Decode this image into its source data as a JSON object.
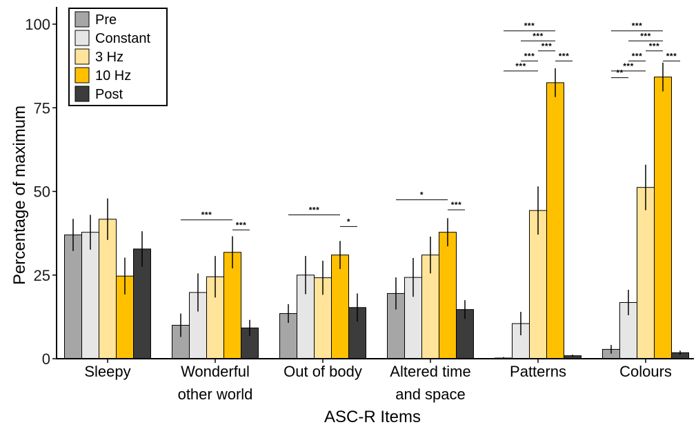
{
  "chart_data": {
    "type": "bar",
    "xlabel": "ASC-R Items",
    "ylabel": "Percentage of maximum",
    "ylim": [
      0,
      100
    ],
    "yticks": [
      0,
      25,
      50,
      75,
      100
    ],
    "grid": false,
    "legend_position": "top-left",
    "categories": [
      [
        "Sleepy"
      ],
      [
        "Wonderful",
        "other world"
      ],
      [
        "Out of body"
      ],
      [
        "Altered time",
        "and space"
      ],
      [
        "Patterns"
      ],
      [
        "Colours"
      ]
    ],
    "series": [
      {
        "name": "Pre",
        "color": "#a6a6a6",
        "values": [
          37,
          10,
          13.5,
          19.5,
          0.2,
          2.8
        ],
        "errors": [
          4.8,
          3.5,
          2.8,
          4.8,
          0.3,
          1.3
        ]
      },
      {
        "name": "Constant",
        "color": "#e6e6e6",
        "values": [
          37.8,
          19.8,
          25,
          24.3,
          10.5,
          16.8
        ],
        "errors": [
          5.2,
          5.7,
          5.7,
          5.8,
          3.5,
          3.8
        ]
      },
      {
        "name": "3 Hz",
        "color": "#ffe499",
        "values": [
          41.7,
          24.5,
          24.2,
          31,
          44.3,
          51.2
        ],
        "errors": [
          6.2,
          6.2,
          5.1,
          5.5,
          7.2,
          6.8
        ]
      },
      {
        "name": "10 Hz",
        "color": "#ffc000",
        "values": [
          24.7,
          31.8,
          31,
          37.8,
          82.5,
          84.2
        ],
        "errors": [
          5.5,
          4.8,
          4.2,
          4.2,
          4.3,
          4.3
        ]
      },
      {
        "name": "Post",
        "color": "#3c3c3c",
        "values": [
          32.8,
          9.2,
          15.3,
          14.7,
          0.9,
          1.8
        ],
        "errors": [
          5.3,
          2.4,
          4.2,
          2.8,
          0.3,
          0.6
        ]
      }
    ],
    "significance": [
      {
        "category": 1,
        "from": 0,
        "to": 3,
        "y": 41.5,
        "label": "***"
      },
      {
        "category": 1,
        "from": 3,
        "to": 4,
        "y": 38.5,
        "label": "***"
      },
      {
        "category": 2,
        "from": 0,
        "to": 3,
        "y": 43,
        "label": "***"
      },
      {
        "category": 2,
        "from": 3,
        "to": 4,
        "y": 39.5,
        "label": "*"
      },
      {
        "category": 3,
        "from": 0,
        "to": 3,
        "y": 47.5,
        "label": "*"
      },
      {
        "category": 3,
        "from": 3,
        "to": 4,
        "y": 44.5,
        "label": "***"
      },
      {
        "category": 4,
        "from": 0,
        "to": 3,
        "y": 98,
        "label": "***"
      },
      {
        "category": 4,
        "from": 1,
        "to": 3,
        "y": 95,
        "label": "***"
      },
      {
        "category": 4,
        "from": 2,
        "to": 3,
        "y": 92,
        "label": "***"
      },
      {
        "category": 4,
        "from": 1,
        "to": 2,
        "y": 89,
        "label": "***"
      },
      {
        "category": 4,
        "from": 0,
        "to": 2,
        "y": 86,
        "label": "***"
      },
      {
        "category": 4,
        "from": 3,
        "to": 4,
        "y": 89,
        "label": "***"
      },
      {
        "category": 5,
        "from": 0,
        "to": 3,
        "y": 98,
        "label": "***"
      },
      {
        "category": 5,
        "from": 1,
        "to": 3,
        "y": 95,
        "label": "***"
      },
      {
        "category": 5,
        "from": 2,
        "to": 3,
        "y": 92,
        "label": "***"
      },
      {
        "category": 5,
        "from": 1,
        "to": 2,
        "y": 89,
        "label": "***"
      },
      {
        "category": 5,
        "from": 0,
        "to": 2,
        "y": 86,
        "label": "***"
      },
      {
        "category": 5,
        "from": 0,
        "to": 1,
        "y": 84,
        "label": "**"
      },
      {
        "category": 5,
        "from": 3,
        "to": 4,
        "y": 89,
        "label": "***"
      }
    ]
  }
}
